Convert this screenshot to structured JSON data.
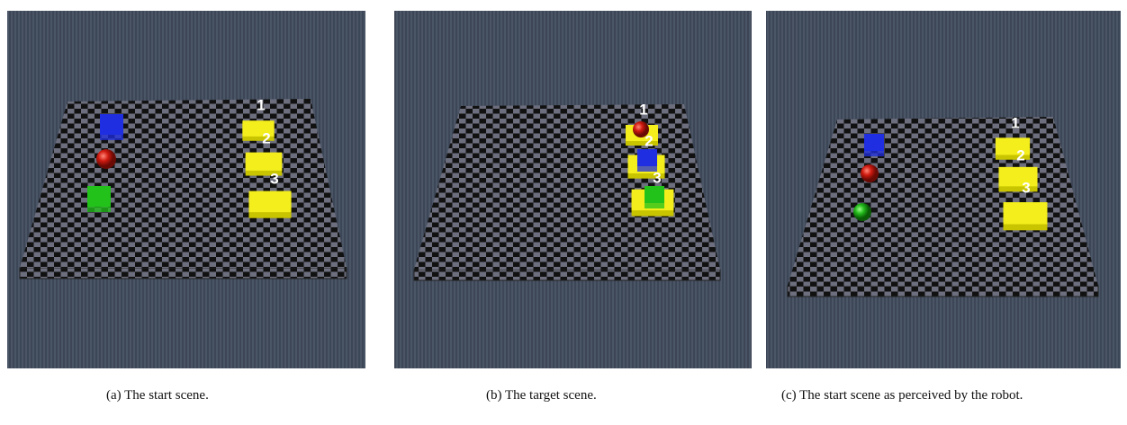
{
  "panels": [
    {
      "caption": "(a) The start scene.",
      "labels": [
        "1",
        "2",
        "3"
      ]
    },
    {
      "caption": "(b) The target scene.",
      "labels": [
        "1",
        "2",
        "3"
      ]
    },
    {
      "caption": "(c) The start scene as perceived by the robot.",
      "labels": [
        "1",
        "2",
        "3"
      ]
    }
  ]
}
